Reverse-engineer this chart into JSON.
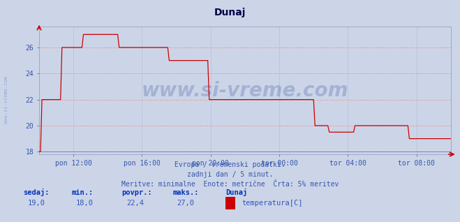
{
  "title": "Dunaj",
  "bg_color": "#ccd5e8",
  "plot_bg_color": "#ccd5e8",
  "line_color": "#cc0000",
  "grid_color_h": "#ee8888",
  "grid_color_v": "#99aacc",
  "tick_color": "#3355aa",
  "title_color": "#000044",
  "watermark": "www.si-vreme.com",
  "watermark_color": "#1a3a8a",
  "side_text": "www.si-vreme.com",
  "subtitle1": "Evropa / vremenski podatki.",
  "subtitle2": "zadnji dan / 5 minut.",
  "subtitle3": "Meritve: minimalne  Enote: metrične  Črta: 5% meritev",
  "footer_labels": [
    "sedaj:",
    "min.:",
    "povpr.:",
    "maks.:",
    "Dunaj"
  ],
  "footer_vals": [
    "19,0",
    "18,0",
    "22,4",
    "27,0"
  ],
  "legend_label": "temperatura[C]",
  "ylim": [
    17.8,
    27.6
  ],
  "yticks": [
    18,
    20,
    22,
    24,
    26
  ],
  "xtick_labels": [
    "pon 12:00",
    "pon 16:00",
    "pon 20:00",
    "tor 00:00",
    "tor 04:00",
    "tor 08:00"
  ],
  "xtick_positions": [
    24,
    72,
    120,
    168,
    216,
    264
  ],
  "xlim": [
    0,
    288
  ],
  "x_steps": [
    0,
    1,
    2,
    14,
    15,
    16,
    30,
    31,
    55,
    56,
    90,
    91,
    118,
    119,
    138,
    139,
    168,
    169,
    192,
    193,
    202,
    203,
    220,
    221,
    258,
    259,
    287,
    288
  ],
  "y_steps": [
    18,
    18,
    22,
    22,
    22,
    26,
    26,
    27,
    27,
    26,
    26,
    25,
    25,
    22,
    22,
    22,
    22,
    22,
    22,
    20,
    20,
    19.5,
    19.5,
    20,
    20,
    19,
    19,
    19
  ]
}
